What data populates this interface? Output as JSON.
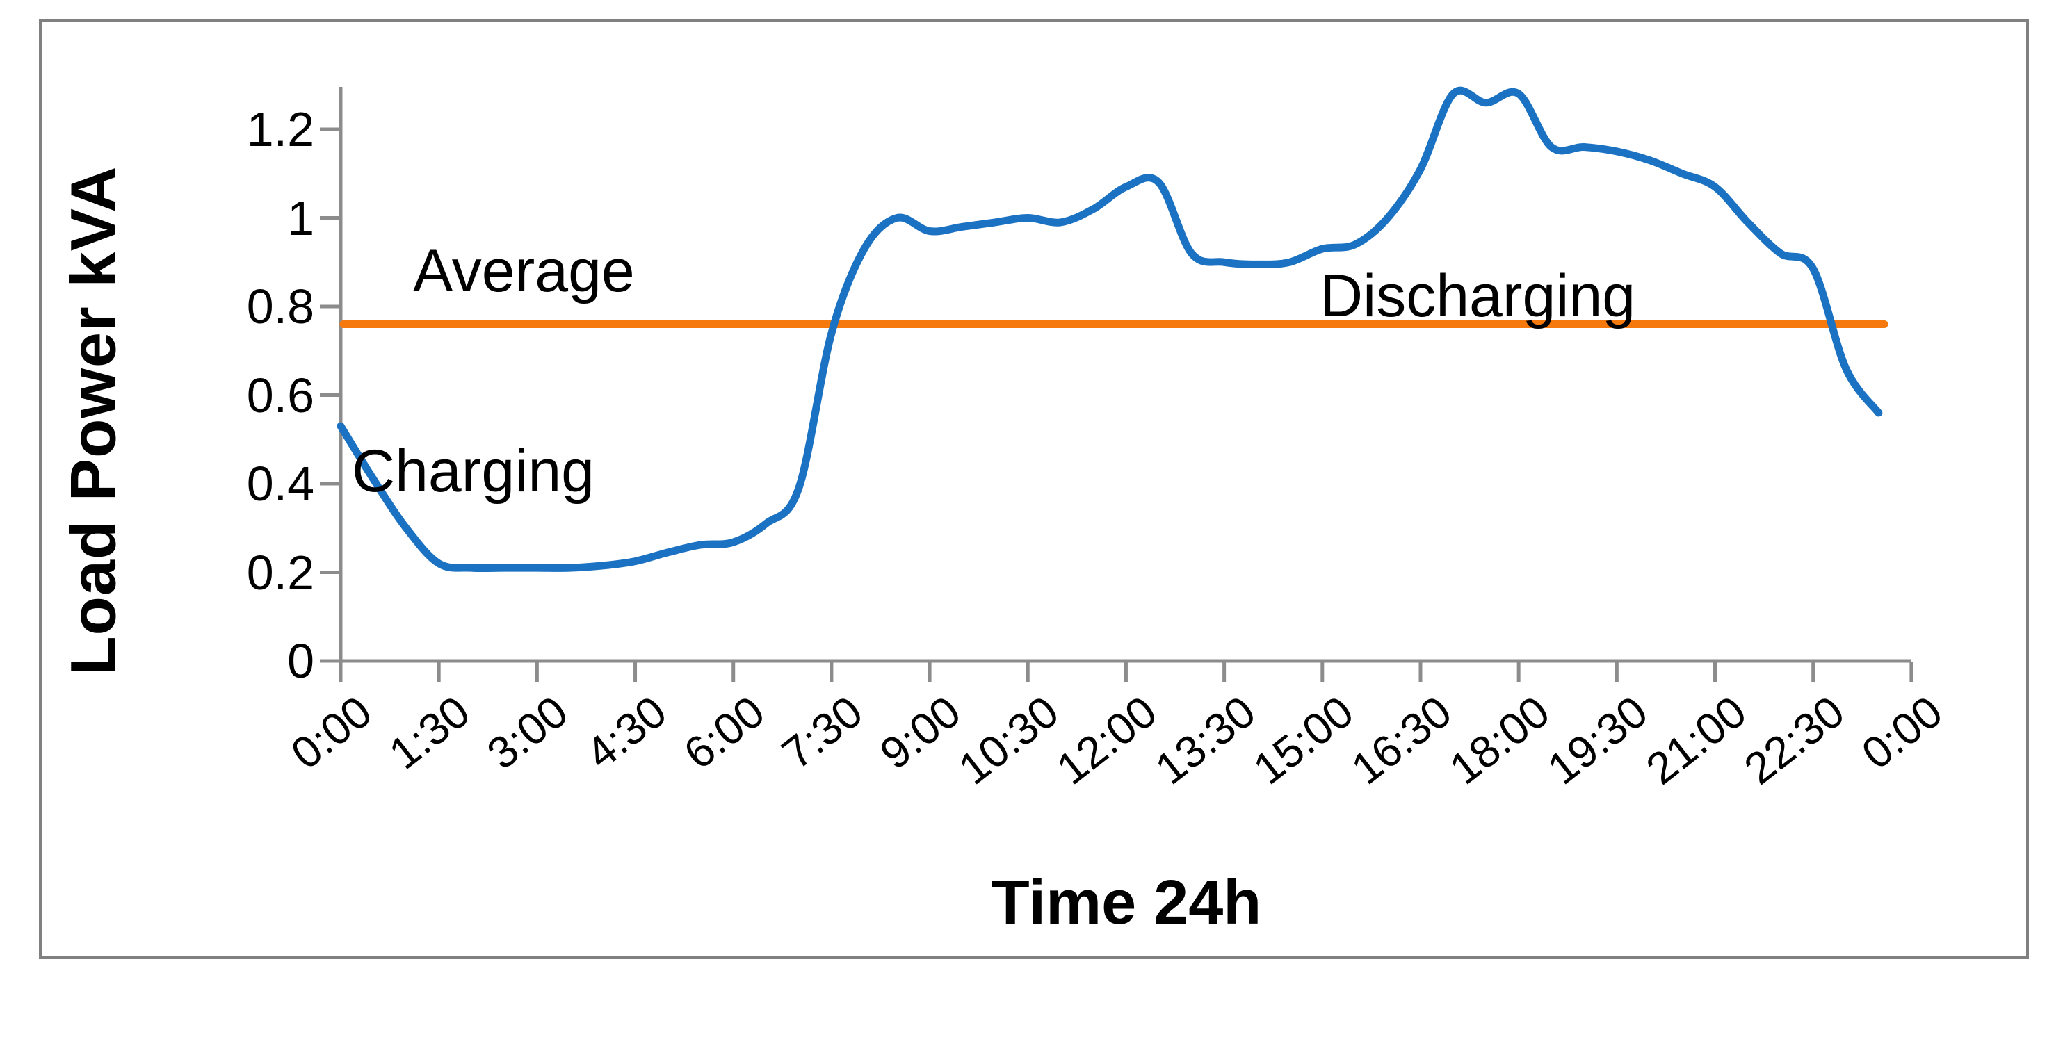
{
  "figure": {
    "background": "#ffffff",
    "border_color": "#808080",
    "axis_color": "#8c8c8c",
    "text_color": "#000000"
  },
  "chart_data": {
    "type": "line",
    "title": "",
    "xlabel": "Time 24h",
    "ylabel": "Load Power kVA",
    "grid": false,
    "legend_position": "none",
    "ylim": [
      0,
      1.3
    ],
    "yticks": [
      0,
      0.2,
      0.4,
      0.6,
      0.8,
      1.0,
      1.2
    ],
    "ytick_labels": [
      "0",
      "0.2",
      "0.4",
      "0.6",
      "0.8",
      "1",
      "1.2"
    ],
    "x_tick_labels": [
      "0:00",
      "1:30",
      "3:00",
      "4:30",
      "6:00",
      "7:30",
      "9:00",
      "10:30",
      "12:00",
      "13:30",
      "15:00",
      "16:30",
      "18:00",
      "19:30",
      "21:00",
      "22:30",
      "0:00"
    ],
    "x_tick_every": 3,
    "categories": [
      "0:00",
      "0:30",
      "1:00",
      "1:30",
      "2:00",
      "2:30",
      "3:00",
      "3:30",
      "4:00",
      "4:30",
      "5:00",
      "5:30",
      "6:00",
      "6:30",
      "7:00",
      "7:30",
      "8:00",
      "8:30",
      "9:00",
      "9:30",
      "10:00",
      "10:30",
      "11:00",
      "11:30",
      "12:00",
      "12:30",
      "13:00",
      "13:30",
      "14:00",
      "14:30",
      "15:00",
      "15:30",
      "16:00",
      "16:30",
      "17:00",
      "17:30",
      "18:00",
      "18:30",
      "19:00",
      "19:30",
      "20:00",
      "20:30",
      "21:00",
      "21:30",
      "22:00",
      "22:30",
      "23:00",
      "23:30"
    ],
    "series": [
      {
        "name": "Load Power",
        "type": "smooth-line",
        "color": "#1b72c2",
        "stroke_width": 11,
        "values": [
          0.53,
          0.41,
          0.3,
          0.22,
          0.21,
          0.21,
          0.21,
          0.21,
          0.215,
          0.225,
          0.245,
          0.262,
          0.268,
          0.31,
          0.39,
          0.74,
          0.93,
          1.0,
          0.97,
          0.98,
          0.99,
          1.0,
          0.99,
          1.02,
          1.07,
          1.08,
          0.92,
          0.9,
          0.895,
          0.9,
          0.93,
          0.94,
          1.0,
          1.11,
          1.28,
          1.26,
          1.28,
          1.16,
          1.16,
          1.15,
          1.13,
          1.1,
          1.07,
          0.99,
          0.92,
          0.885,
          0.66,
          0.56
        ]
      },
      {
        "name": "Average",
        "type": "hline",
        "color": "#f5790d",
        "stroke_width": 11,
        "value": 0.76
      }
    ],
    "annotations": [
      {
        "id": "average",
        "text": "Average"
      },
      {
        "id": "charging",
        "text": "Charging"
      },
      {
        "id": "discharging",
        "text": "Discharging"
      }
    ]
  }
}
